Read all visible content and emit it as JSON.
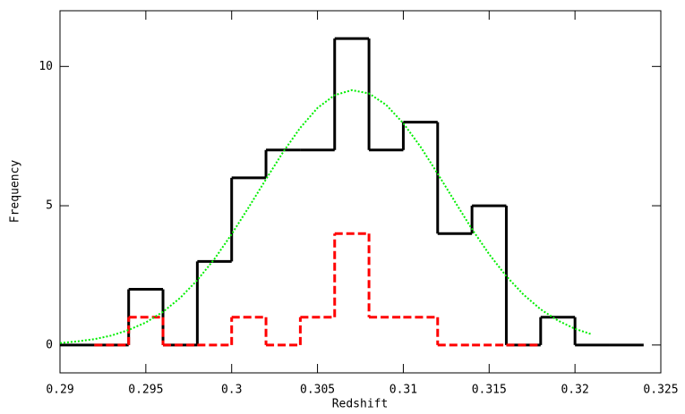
{
  "chart_data": {
    "type": "histogram",
    "xlabel": "Redshift",
    "ylabel": "Frequency",
    "xlim": [
      0.29,
      0.325
    ],
    "ylim": [
      -1,
      12
    ],
    "xticks": [
      0.29,
      0.295,
      0.3,
      0.305,
      0.31,
      0.315,
      0.32,
      0.325
    ],
    "yticks": [
      0,
      5,
      10
    ],
    "series": [
      {
        "color": "#000000",
        "linestyle": "solid",
        "bins": [
          0.29,
          0.292,
          0.294,
          0.296,
          0.298,
          0.3,
          0.302,
          0.304,
          0.306,
          0.308,
          0.31,
          0.312,
          0.314,
          0.316,
          0.318,
          0.32,
          0.322,
          0.324
        ],
        "values": [
          0,
          0,
          2,
          0,
          3,
          6,
          7,
          7,
          11,
          7,
          8,
          4,
          5,
          0,
          1,
          0,
          0
        ]
      },
      {
        "color": "#ff0000",
        "linestyle": "dashed",
        "bins": [
          0.292,
          0.294,
          0.296,
          0.298,
          0.3,
          0.302,
          0.304,
          0.306,
          0.308,
          0.31,
          0.312,
          0.314,
          0.316,
          0.318
        ],
        "values": [
          0,
          1,
          0,
          0,
          1,
          0,
          1,
          4,
          1,
          1,
          0,
          0,
          0
        ]
      }
    ],
    "curve": {
      "color": "#00ee00",
      "linestyle": "dotted",
      "x": [
        0.29,
        0.291,
        0.292,
        0.293,
        0.294,
        0.295,
        0.296,
        0.297,
        0.298,
        0.299,
        0.3,
        0.301,
        0.302,
        0.303,
        0.304,
        0.305,
        0.306,
        0.307,
        0.308,
        0.309,
        0.31,
        0.311,
        0.312,
        0.313,
        0.314,
        0.315,
        0.316,
        0.317,
        0.318,
        0.319,
        0.32,
        0.321
      ],
      "values": [
        0.07,
        0.13,
        0.21,
        0.34,
        0.54,
        0.81,
        1.19,
        1.69,
        2.33,
        3.09,
        3.98,
        4.95,
        5.95,
        6.93,
        7.8,
        8.51,
        8.97,
        9.15,
        9.03,
        8.62,
        7.96,
        7.12,
        6.15,
        5.15,
        4.16,
        3.26,
        2.47,
        1.81,
        1.28,
        0.88,
        0.58,
        0.38
      ]
    }
  }
}
